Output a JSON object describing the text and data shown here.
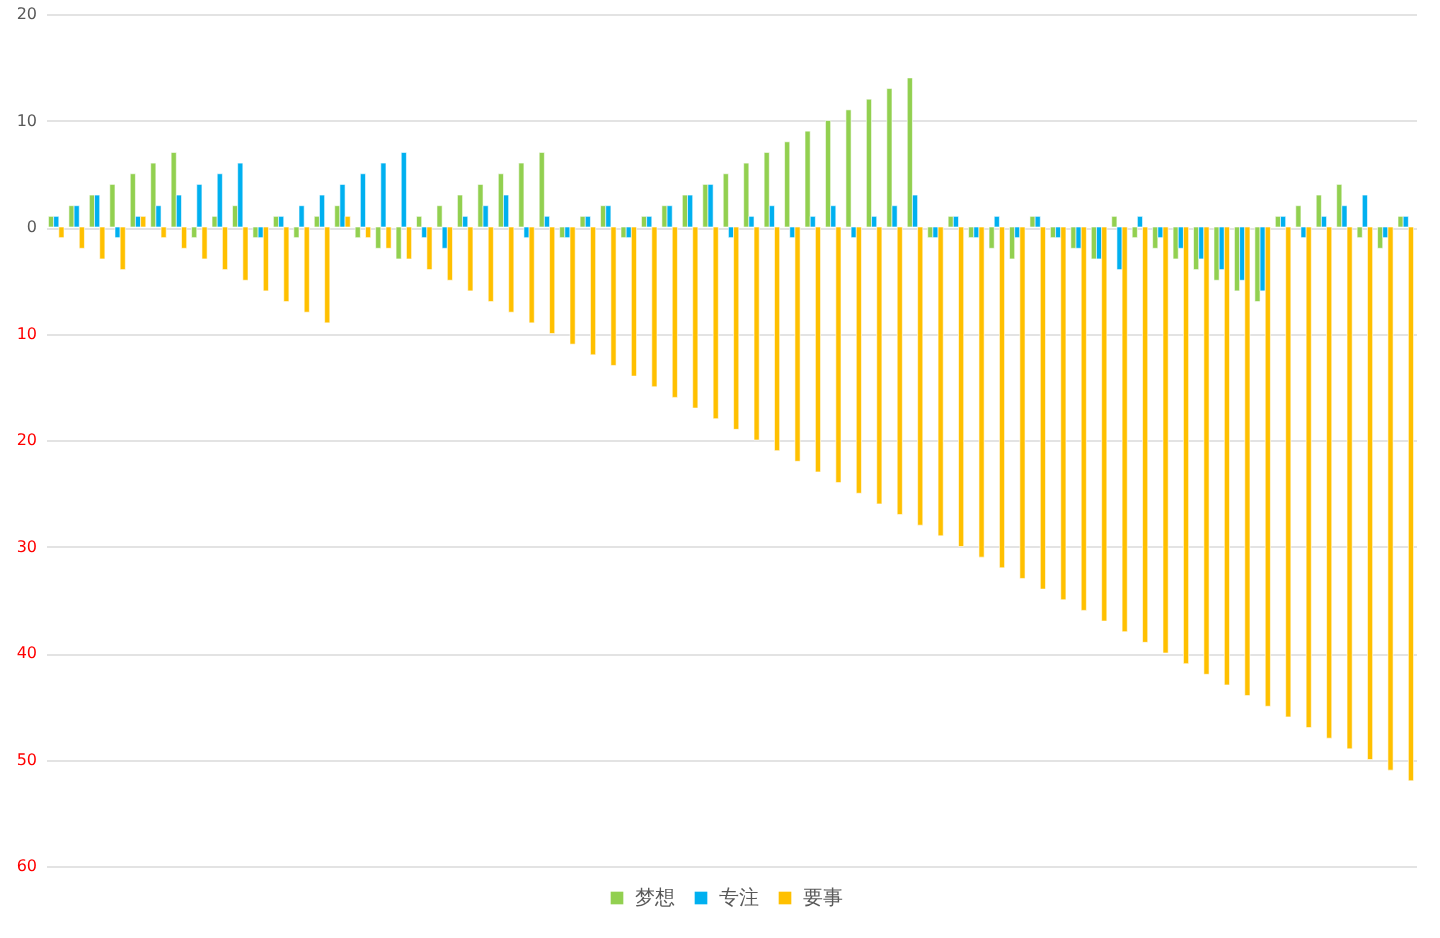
{
  "chart_data": {
    "type": "bar",
    "categories": [
      null,
      null,
      null,
      null,
      null,
      null,
      null,
      null,
      null,
      null,
      null,
      null,
      null,
      null,
      null,
      null,
      null,
      null,
      null,
      null,
      null,
      null,
      null,
      null,
      null,
      null,
      null,
      null,
      null,
      null,
      null,
      null,
      null,
      null,
      null,
      null,
      null,
      null,
      null,
      null,
      null,
      null,
      null,
      null,
      null,
      null,
      null,
      null,
      null,
      null,
      null,
      null,
      null,
      null,
      null,
      null,
      null,
      null,
      null,
      null,
      null,
      null,
      null,
      null,
      null,
      null,
      null
    ],
    "series": [
      {
        "name": "梦想",
        "color": "#92d050",
        "values": [
          1,
          2,
          3,
          4,
          5,
          6,
          7,
          -1,
          1,
          2,
          -1,
          1,
          -1,
          1,
          2,
          -1,
          -2,
          -3,
          1,
          2,
          3,
          4,
          5,
          6,
          7,
          -1,
          1,
          2,
          -1,
          1,
          2,
          3,
          4,
          5,
          6,
          7,
          8,
          9,
          10,
          11,
          12,
          13,
          14,
          -1,
          1,
          -1,
          -2,
          -3,
          1,
          -1,
          -2,
          -3,
          1,
          -1,
          -2,
          -3,
          -4,
          -5,
          -6,
          -7,
          1,
          2,
          3,
          4,
          -1,
          -2,
          1
        ]
      },
      {
        "name": "专注",
        "color": "#00b0f0",
        "values": [
          1,
          2,
          3,
          -1,
          1,
          2,
          3,
          4,
          5,
          6,
          -1,
          1,
          2,
          3,
          4,
          5,
          6,
          7,
          -1,
          -2,
          1,
          2,
          3,
          -1,
          1,
          -1,
          1,
          2,
          -1,
          1,
          2,
          3,
          4,
          -1,
          1,
          2,
          -1,
          1,
          2,
          -1,
          1,
          2,
          3,
          -1,
          1,
          -1,
          1,
          -1,
          1,
          -1,
          -2,
          -3,
          -4,
          1,
          -1,
          -2,
          -3,
          -4,
          -5,
          -6,
          1,
          -1,
          1,
          2,
          3,
          -1,
          1
        ]
      },
      {
        "name": "要事",
        "color": "#ffc000",
        "values": [
          -1,
          -2,
          -3,
          -4,
          1,
          -1,
          -2,
          -3,
          -4,
          -5,
          -6,
          -7,
          -8,
          -9,
          1,
          -1,
          -2,
          -3,
          -4,
          -5,
          -6,
          -7,
          -8,
          -9,
          -10,
          -11,
          -12,
          -13,
          -14,
          -15,
          -16,
          -17,
          -18,
          -19,
          -20,
          -21,
          -22,
          -23,
          -24,
          -25,
          -26,
          -27,
          -28,
          -29,
          -30,
          -31,
          -32,
          -33,
          -34,
          -35,
          -36,
          -37,
          -38,
          -39,
          -40,
          -41,
          -42,
          -43,
          -44,
          -45,
          -46,
          -47,
          -48,
          -49,
          -50,
          -51,
          -52
        ]
      }
    ],
    "ylim": [
      -60,
      20
    ],
    "yticks": [
      {
        "value": -60,
        "label": "60"
      },
      {
        "value": -50,
        "label": "50"
      },
      {
        "value": -40,
        "label": "40"
      },
      {
        "value": -30,
        "label": "30"
      },
      {
        "value": -20,
        "label": "20"
      },
      {
        "value": -10,
        "label": "10"
      },
      0,
      10,
      20
    ],
    "grid": "y",
    "legend": "bottom",
    "tick_labels": "y"
  }
}
